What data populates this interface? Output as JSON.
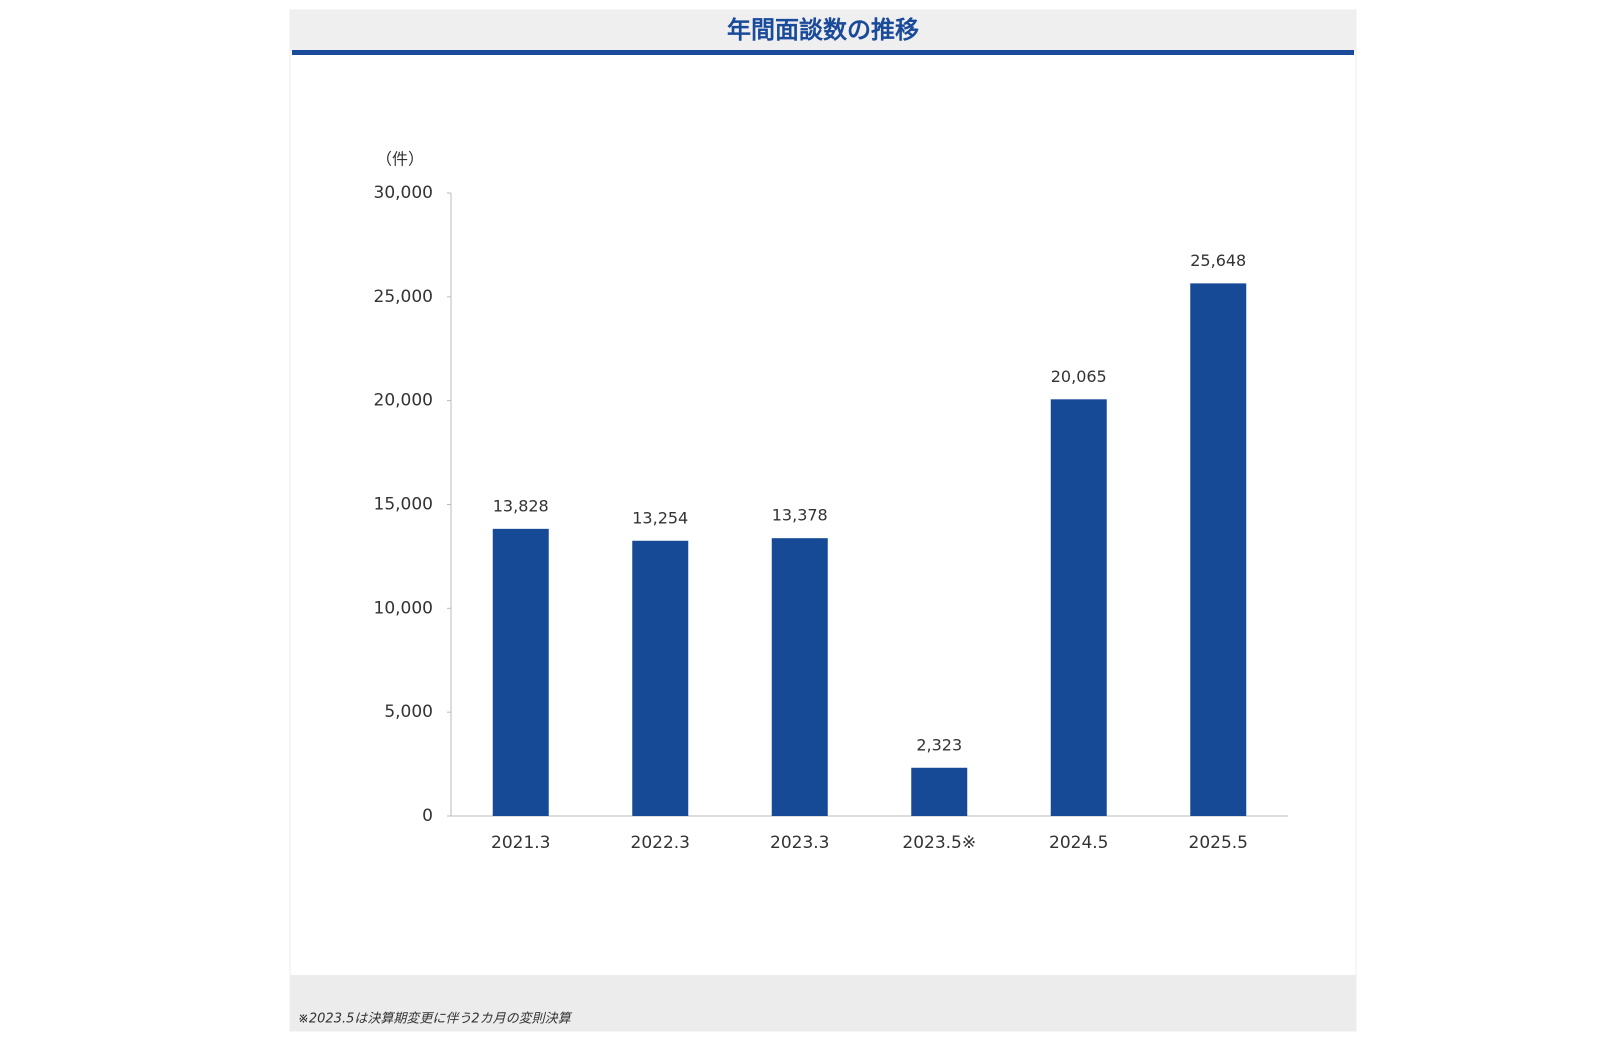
{
  "chart_data": {
    "type": "bar",
    "title": "年間面談数の推移",
    "y_unit": "（件）",
    "categories": [
      "2021.3",
      "2022.3",
      "2023.3",
      "2023.5※",
      "2024.5",
      "2025.5"
    ],
    "values": [
      13828,
      13254,
      13378,
      2323,
      20065,
      25648
    ],
    "value_labels": [
      "13,828",
      "13,254",
      "13,378",
      "2,323",
      "20,065",
      "25,648"
    ],
    "color": "#164a96",
    "ylim": [
      0,
      30000
    ],
    "yticks": [
      0,
      {
        "value": 5000,
        "label": "5,000"
      },
      {
        "value": 10000,
        "label": "10,000"
      },
      {
        "value": 15000,
        "label": "15,000"
      },
      {
        "value": 20000,
        "label": "20,000"
      },
      {
        "value": 25000,
        "label": "25,000"
      },
      {
        "value": 30000,
        "label": "30,000"
      }
    ],
    "footnote": "※2023.5は決算期変更に伴う2カ月の変則決算"
  }
}
